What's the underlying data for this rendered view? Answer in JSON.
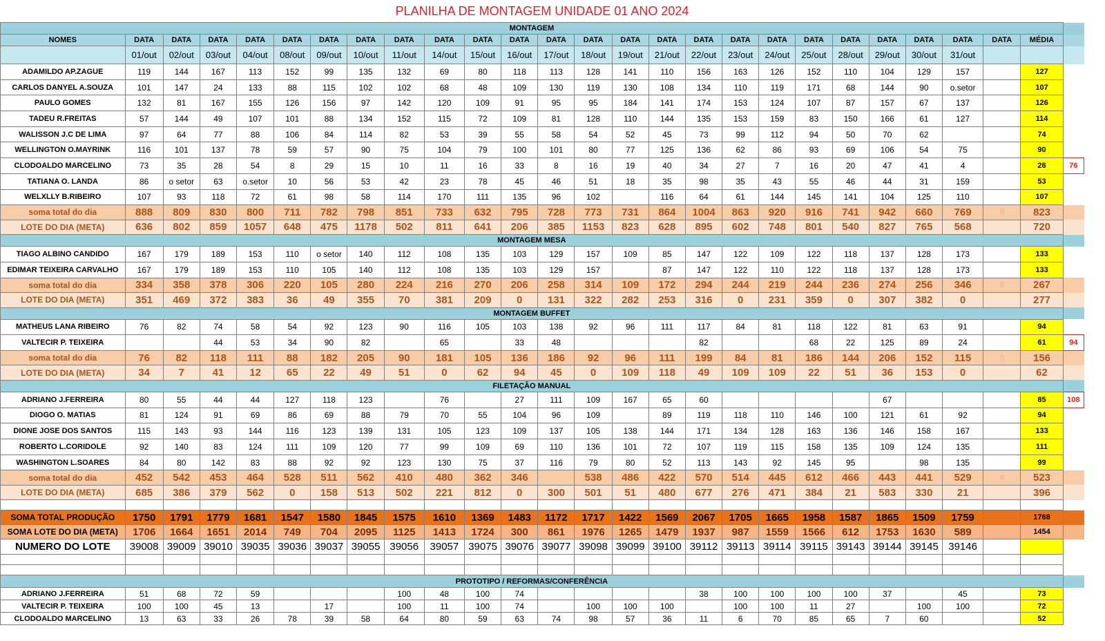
{
  "title": "PLANILHA DE MONTAGEM UNIDADE 01   ANO 2024",
  "header": {
    "nomes": "NOMES",
    "data_label": "DATA",
    "media_label": "MÉDIA",
    "dates": [
      "01/out",
      "02/out",
      "03/out",
      "04/out",
      "08/out",
      "09/out",
      "10/out",
      "11/out",
      "14/out",
      "15/out",
      "16/out",
      "17/out",
      "18/out",
      "19/out",
      "21/out",
      "22/out",
      "23/out",
      "24/out",
      "25/out",
      "28/out",
      "29/out",
      "30/out",
      "31/out",
      ""
    ]
  },
  "sections": [
    {
      "title": "MONTAGEM",
      "rows": [
        {
          "name": "ADAMILDO AP.ZAGUE",
          "values": [
            "119",
            "144",
            "167",
            "113",
            "152",
            "99",
            "135",
            "132",
            "69",
            "80",
            "118",
            "113",
            "128",
            "141",
            "110",
            "156",
            "163",
            "126",
            "152",
            "110",
            "104",
            "129",
            "157",
            ""
          ],
          "media": "127",
          "side": ""
        },
        {
          "name": "CARLOS DANYEL A.SOUZA",
          "values": [
            "101",
            "147",
            "24",
            "133",
            "88",
            "115",
            "102",
            "102",
            "68",
            "48",
            "109",
            "130",
            "119",
            "130",
            "108",
            "134",
            "110",
            "119",
            "171",
            "68",
            "144",
            "90",
            "o.setor",
            ""
          ],
          "media": "107",
          "side": ""
        },
        {
          "name": "PAULO GOMES",
          "values": [
            "132",
            "81",
            "167",
            "155",
            "126",
            "156",
            "97",
            "142",
            "120",
            "109",
            "91",
            "95",
            "95",
            "184",
            "141",
            "174",
            "153",
            "124",
            "107",
            "87",
            "157",
            "67",
            "137",
            ""
          ],
          "media": "126",
          "side": ""
        },
        {
          "name": "TADEU R.FREITAS",
          "values": [
            "57",
            "144",
            "49",
            "107",
            "101",
            "88",
            "134",
            "152",
            "115",
            "72",
            "109",
            "81",
            "128",
            "110",
            "144",
            "135",
            "153",
            "159",
            "83",
            "150",
            "166",
            "61",
            "127",
            ""
          ],
          "media": "114",
          "side": ""
        },
        {
          "name": "WALISSON J.C DE LIMA",
          "values": [
            "97",
            "64",
            "77",
            "88",
            "106",
            "84",
            "114",
            "82",
            "53",
            "39",
            "55",
            "58",
            "54",
            "52",
            "45",
            "73",
            "99",
            "112",
            "94",
            "50",
            "70",
            "62",
            "",
            ""
          ],
          "media": "74",
          "side": ""
        },
        {
          "name": "WELLINGTON O.MAYRINK",
          "values": [
            "116",
            "101",
            "137",
            "78",
            "59",
            "57",
            "90",
            "75",
            "104",
            "79",
            "100",
            "101",
            "80",
            "77",
            "125",
            "136",
            "62",
            "86",
            "93",
            "69",
            "106",
            "54",
            "75",
            ""
          ],
          "media": "90",
          "side": ""
        },
        {
          "name": "CLODOALDO MARCELINO",
          "values": [
            "73",
            "35",
            "28",
            "54",
            "8",
            "29",
            "15",
            "10",
            "11",
            "16",
            "33",
            "8",
            "16",
            "19",
            "40",
            "34",
            "27",
            "7",
            "16",
            "20",
            "47",
            "41",
            "4",
            ""
          ],
          "media": "26",
          "side": "76"
        },
        {
          "name": "TATIANA O. LANDA",
          "values": [
            "86",
            "o setor",
            "63",
            "o.setor",
            "10",
            "56",
            "53",
            "42",
            "23",
            "78",
            "45",
            "46",
            "51",
            "18",
            "35",
            "98",
            "35",
            "43",
            "55",
            "46",
            "44",
            "31",
            "159",
            ""
          ],
          "media": "53",
          "side": ""
        },
        {
          "name": "WELXLLY B.RIBEIRO",
          "values": [
            "107",
            "93",
            "118",
            "72",
            "61",
            "98",
            "58",
            "114",
            "170",
            "111",
            "135",
            "96",
            "102",
            "",
            "116",
            "64",
            "61",
            "144",
            "145",
            "141",
            "104",
            "125",
            "110",
            ""
          ],
          "media": "107",
          "side": ""
        }
      ],
      "soma": {
        "label": "soma total  do dia",
        "values": [
          "888",
          "809",
          "830",
          "800",
          "711",
          "782",
          "798",
          "851",
          "733",
          "632",
          "795",
          "728",
          "773",
          "731",
          "864",
          "1004",
          "863",
          "920",
          "916",
          "741",
          "942",
          "660",
          "769",
          "0"
        ],
        "media": "823"
      },
      "lote": {
        "label": "LOTE DO DIA (META)",
        "values": [
          "636",
          "802",
          "859",
          "1057",
          "648",
          "475",
          "1178",
          "502",
          "811",
          "641",
          "206",
          "385",
          "1153",
          "823",
          "628",
          "895",
          "602",
          "748",
          "801",
          "540",
          "827",
          "765",
          "568",
          ""
        ],
        "media": "720"
      }
    },
    {
      "title": "MONTAGEM MESA",
      "rows": [
        {
          "name": "TIAGO ALBINO CANDIDO",
          "values": [
            "167",
            "179",
            "189",
            "153",
            "110",
            "o setor",
            "140",
            "112",
            "108",
            "135",
            "103",
            "129",
            "157",
            "109",
            "85",
            "147",
            "122",
            "109",
            "122",
            "118",
            "137",
            "128",
            "173",
            ""
          ],
          "media": "133",
          "side": ""
        },
        {
          "name": "EDIMAR TEIXEIRA CARVALHO",
          "values": [
            "167",
            "179",
            "189",
            "153",
            "110",
            "105",
            "140",
            "112",
            "108",
            "135",
            "103",
            "129",
            "157",
            "",
            "87",
            "147",
            "122",
            "110",
            "122",
            "118",
            "137",
            "128",
            "173",
            ""
          ],
          "media": "133",
          "side": ""
        }
      ],
      "soma": {
        "label": "soma total  do dia",
        "values": [
          "334",
          "358",
          "378",
          "306",
          "220",
          "105",
          "280",
          "224",
          "216",
          "270",
          "206",
          "258",
          "314",
          "109",
          "172",
          "294",
          "244",
          "219",
          "244",
          "236",
          "274",
          "256",
          "346",
          "0"
        ],
        "media": "267"
      },
      "lote": {
        "label": "LOTE DO DIA (META)",
        "values": [
          "351",
          "469",
          "372",
          "383",
          "36",
          "49",
          "355",
          "70",
          "381",
          "209",
          "0",
          "131",
          "322",
          "282",
          "253",
          "316",
          "0",
          "231",
          "359",
          "0",
          "307",
          "382",
          "0",
          ""
        ],
        "media": "277"
      }
    },
    {
      "title": "MONTAGEM BUFFET",
      "rows": [
        {
          "name": "MATHEUS LANA RIBEIRO",
          "values": [
            "76",
            "82",
            "74",
            "58",
            "54",
            "92",
            "123",
            "90",
            "116",
            "105",
            "103",
            "138",
            "92",
            "96",
            "111",
            "117",
            "84",
            "81",
            "118",
            "122",
            "81",
            "63",
            "91",
            ""
          ],
          "media": "94",
          "side": ""
        },
        {
          "name": "VALTECIR P. TEIXEIRA",
          "values": [
            "",
            "",
            "44",
            "53",
            "34",
            "90",
            "82",
            "",
            "65",
            "",
            "33",
            "48",
            "",
            "",
            "",
            "82",
            "",
            "",
            "68",
            "22",
            "125",
            "89",
            "24",
            ""
          ],
          "media": "61",
          "side": "94"
        }
      ],
      "soma": {
        "label": "soma total  do dia",
        "values": [
          "76",
          "82",
          "118",
          "111",
          "88",
          "182",
          "205",
          "90",
          "181",
          "105",
          "136",
          "186",
          "92",
          "96",
          "111",
          "199",
          "84",
          "81",
          "186",
          "144",
          "206",
          "152",
          "115",
          "0"
        ],
        "media": "156"
      },
      "lote": {
        "label": "LOTE DO DIA (META)",
        "values": [
          "34",
          "7",
          "41",
          "12",
          "65",
          "22",
          "49",
          "51",
          "0",
          "62",
          "94",
          "45",
          "0",
          "109",
          "118",
          "49",
          "109",
          "109",
          "22",
          "51",
          "36",
          "153",
          "0",
          ""
        ],
        "media": "62"
      }
    },
    {
      "title": "FILETAÇÃO MANUAL",
      "rows": [
        {
          "name": "ADRIANO J.FERREIRA",
          "values": [
            "80",
            "55",
            "44",
            "44",
            "127",
            "118",
            "123",
            "",
            "76",
            "",
            "27",
            "111",
            "109",
            "167",
            "65",
            "60",
            "",
            "",
            "",
            "",
            "67",
            "",
            "",
            ""
          ],
          "media": "85",
          "side": "108"
        },
        {
          "name": "DIOGO O. MATIAS",
          "values": [
            "81",
            "124",
            "91",
            "69",
            "86",
            "69",
            "88",
            "79",
            "70",
            "55",
            "104",
            "96",
            "109",
            "",
            "89",
            "119",
            "118",
            "110",
            "146",
            "100",
            "121",
            "61",
            "92",
            ""
          ],
          "media": "94",
          "side": ""
        },
        {
          "name": "DIONE  JOSE DOS SANTOS",
          "values": [
            "115",
            "143",
            "93",
            "144",
            "116",
            "123",
            "139",
            "131",
            "105",
            "123",
            "109",
            "137",
            "105",
            "138",
            "144",
            "171",
            "134",
            "128",
            "163",
            "136",
            "146",
            "158",
            "167",
            ""
          ],
          "media": "133",
          "side": ""
        },
        {
          "name": "ROBERTO L.CORIDOLE",
          "values": [
            "92",
            "140",
            "83",
            "124",
            "111",
            "109",
            "120",
            "77",
            "99",
            "109",
            "69",
            "110",
            "136",
            "101",
            "72",
            "107",
            "119",
            "115",
            "158",
            "135",
            "109",
            "124",
            "135",
            ""
          ],
          "media": "111",
          "side": ""
        },
        {
          "name": "WASHINGTON L.SOARES",
          "values": [
            "84",
            "80",
            "142",
            "83",
            "88",
            "92",
            "92",
            "123",
            "130",
            "75",
            "37",
            "116",
            "79",
            "80",
            "52",
            "113",
            "143",
            "92",
            "145",
            "95",
            "",
            "98",
            "135",
            ""
          ],
          "media": "99",
          "side": ""
        }
      ],
      "soma": {
        "label": "soma total  do dia",
        "values": [
          "452",
          "542",
          "453",
          "464",
          "528",
          "511",
          "562",
          "410",
          "480",
          "362",
          "346",
          "",
          "538",
          "486",
          "422",
          "570",
          "514",
          "445",
          "612",
          "466",
          "443",
          "441",
          "529",
          "0"
        ],
        "media": "523"
      },
      "lote": {
        "label": "LOTE DO DIA (META)",
        "values": [
          "685",
          "386",
          "379",
          "562",
          "0",
          "158",
          "513",
          "502",
          "221",
          "812",
          "0",
          "300",
          "501",
          "51",
          "480",
          "677",
          "276",
          "471",
          "384",
          "21",
          "583",
          "330",
          "21",
          ""
        ],
        "media": "396"
      }
    }
  ],
  "totals": {
    "soma_total": {
      "label": "SOMA TOTAL PRODUÇÃO",
      "values": [
        "1750",
        "1791",
        "1779",
        "1681",
        "1547",
        "1580",
        "1845",
        "1575",
        "1610",
        "1369",
        "1483",
        "1172",
        "1717",
        "1422",
        "1569",
        "2067",
        "1705",
        "1665",
        "1958",
        "1587",
        "1865",
        "1509",
        "1759",
        ""
      ],
      "media": "1768"
    },
    "soma_lote": {
      "label": "SOMA LOTE DO DIA (META)",
      "values": [
        "1706",
        "1664",
        "1651",
        "2014",
        "749",
        "704",
        "2095",
        "1125",
        "1413",
        "1724",
        "300",
        "861",
        "1976",
        "1265",
        "1479",
        "1937",
        "987",
        "1559",
        "1566",
        "612",
        "1753",
        "1630",
        "589",
        "0"
      ],
      "media": "1454"
    },
    "numero_lote": {
      "label": "NUMERO DO LOTE",
      "values": [
        "39008",
        "39009",
        "39010",
        "39035",
        "39036",
        "39037",
        "39055",
        "39056",
        "39057",
        "39075",
        "39076",
        "39077",
        "39098",
        "39099",
        "39100",
        "39112",
        "39113",
        "39114",
        "39115",
        "39143",
        "39144",
        "39145",
        "39146",
        ""
      ],
      "media": ""
    }
  },
  "prototipo": {
    "title": "PROTOTIPO / REFORMAS/CONFERÊNCIA",
    "rows": [
      {
        "name": "ADRIANO J.FERREIRA",
        "values": [
          "51",
          "68",
          "72",
          "59",
          "",
          "",
          "",
          "100",
          "48",
          "100",
          "74",
          "",
          "",
          "",
          "",
          "38",
          "100",
          "100",
          "100",
          "100",
          "37",
          "",
          "45",
          ""
        ],
        "media": "73"
      },
      {
        "name": "VALTECIR P. TEIXEIRA",
        "values": [
          "100",
          "100",
          "45",
          "13",
          "",
          "17",
          "",
          "100",
          "11",
          "100",
          "74",
          "",
          "100",
          "100",
          "100",
          "",
          "100",
          "100",
          "11",
          "27",
          "",
          "100",
          "100",
          ""
        ],
        "media": "72"
      },
      {
        "name": "CLODOALDO MARCELINO",
        "values": [
          "13",
          "63",
          "33",
          "26",
          "78",
          "39",
          "58",
          "64",
          "80",
          "59",
          "63",
          "74",
          "98",
          "57",
          "36",
          "11",
          "6",
          "70",
          "85",
          "65",
          "7",
          "60",
          "",
          ""
        ],
        "media": "52"
      }
    ]
  }
}
